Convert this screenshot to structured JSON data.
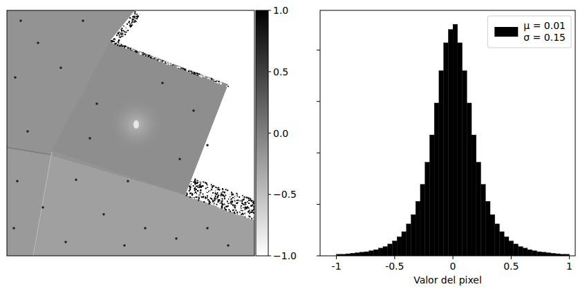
{
  "chart_data": [
    {
      "type": "image",
      "tick_labels": false,
      "colorbar": {
        "range": [
          -1,
          1
        ],
        "ticks": [
          {
            "value": 1,
            "label": "1.0"
          },
          {
            "value": 0.5,
            "label": "0.5"
          },
          {
            "value": 0,
            "label": "0.0"
          },
          {
            "value": -0.5,
            "label": "−0.5"
          },
          {
            "value": -1,
            "label": "−1.0"
          }
        ]
      }
    },
    {
      "type": "histogram",
      "xlabel": "Valor del pixel",
      "bins": [
        -1,
        -0.96,
        -0.92,
        -0.88,
        -0.84,
        -0.8,
        -0.76,
        -0.72,
        -0.68,
        -0.64,
        -0.6,
        -0.56,
        -0.52,
        -0.48,
        -0.44,
        -0.4,
        -0.36,
        -0.32,
        -0.28,
        -0.24,
        -0.2,
        -0.16,
        -0.12,
        -0.08,
        -0.04,
        0,
        0.04,
        0.08,
        0.12,
        0.16,
        0.2,
        0.24,
        0.28,
        0.32,
        0.36,
        0.4,
        0.44,
        0.48,
        0.52,
        0.56,
        0.6,
        0.64,
        0.68,
        0.72,
        0.76,
        0.8,
        0.84,
        0.88,
        0.92,
        0.96,
        1
      ],
      "series": [
        {
          "name": "μ = 0.01\nσ = 0.15",
          "color": "#000000",
          "values": [
            0.03,
            0.03,
            0.04,
            0.05,
            0.06,
            0.07,
            0.08,
            0.1,
            0.12,
            0.15,
            0.18,
            0.23,
            0.29,
            0.37,
            0.47,
            0.62,
            0.8,
            1.06,
            1.39,
            1.82,
            2.35,
            2.97,
            3.6,
            4.14,
            4.4,
            4.5,
            4.14,
            3.6,
            2.97,
            2.35,
            1.82,
            1.39,
            1.06,
            0.8,
            0.62,
            0.47,
            0.37,
            0.29,
            0.23,
            0.18,
            0.15,
            0.12,
            0.1,
            0.08,
            0.07,
            0.06,
            0.05,
            0.04,
            0.03,
            0.03
          ]
        }
      ],
      "xlim": [
        -1.14,
        1.05
      ],
      "ylim": [
        0,
        4.77
      ],
      "xticks": [
        -1,
        -0.5,
        0,
        0.5,
        1
      ],
      "yticks": [
        0,
        1,
        2,
        3,
        4
      ],
      "tick_labels": "x",
      "legend": "upper right"
    }
  ]
}
